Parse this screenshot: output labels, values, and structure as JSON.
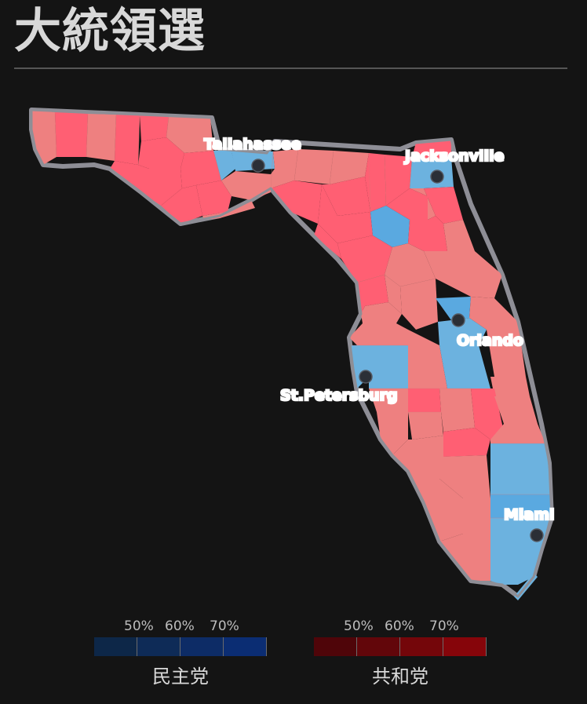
{
  "title": "大統領選",
  "cities": [
    {
      "name": "Tallahassee"
    },
    {
      "name": "Jacksonville"
    },
    {
      "name": "Orlando"
    },
    {
      "name": "St.Petersburg"
    },
    {
      "name": "Miami"
    }
  ],
  "colors": {
    "republican_strong": "#ff5f73",
    "republican_lean": "#ee8080",
    "democrat": "#6cb2df",
    "democrat_strong": "#5aa9e0",
    "outline": "#8e8e96",
    "city_dot": "#2b2f36"
  },
  "legend": {
    "democrat": {
      "label": "民主党",
      "ticks": [
        "50%",
        "60%",
        "70%"
      ],
      "colors": [
        "#0d2748",
        "#0e2b57",
        "#0d2c66",
        "#0b2d73"
      ]
    },
    "republican": {
      "label": "共和党",
      "ticks": [
        "50%",
        "60%",
        "70%"
      ],
      "colors": [
        "#4f0509",
        "#62060a",
        "#74060a",
        "#86050a"
      ]
    }
  }
}
